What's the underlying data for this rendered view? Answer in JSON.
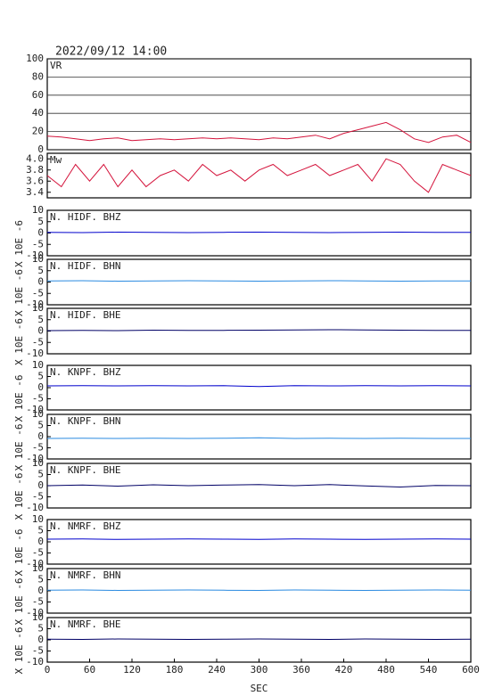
{
  "chart_data": [
    {
      "type": "line",
      "title": "2022/09/12 14:00",
      "label": "VR",
      "color": "#d4143c",
      "grid": true,
      "ylim": [
        0,
        100
      ],
      "yticks": [
        0,
        20,
        40,
        60,
        80,
        100
      ],
      "x": [
        0,
        20,
        40,
        60,
        80,
        100,
        120,
        140,
        160,
        180,
        200,
        220,
        240,
        260,
        280,
        300,
        320,
        340,
        360,
        380,
        400,
        420,
        440,
        460,
        480,
        500,
        520,
        540,
        560,
        580,
        600
      ],
      "values": [
        15,
        14,
        12,
        10,
        12,
        13,
        10,
        11,
        12,
        11,
        12,
        13,
        12,
        13,
        12,
        11,
        13,
        12,
        14,
        16,
        12,
        18,
        22,
        26,
        30,
        22,
        12,
        8,
        14,
        16,
        8
      ]
    },
    {
      "type": "line",
      "label": "Mw",
      "color": "#d4143c",
      "grid": false,
      "ylim": [
        3.3,
        4.1
      ],
      "yticks": [
        3.4,
        3.6,
        3.8,
        {
          "value": 4.0,
          "label": "4.0"
        }
      ],
      "x": [
        0,
        20,
        40,
        60,
        80,
        100,
        120,
        140,
        160,
        180,
        200,
        220,
        240,
        260,
        280,
        300,
        320,
        340,
        360,
        380,
        400,
        420,
        440,
        460,
        480,
        500,
        520,
        540,
        560,
        580,
        600
      ],
      "values": [
        3.7,
        3.5,
        3.9,
        3.6,
        3.9,
        3.5,
        3.8,
        3.5,
        3.7,
        3.8,
        3.6,
        3.9,
        3.7,
        3.8,
        3.6,
        3.8,
        3.9,
        3.7,
        3.8,
        3.9,
        3.7,
        3.8,
        3.9,
        3.6,
        4.0,
        3.9,
        3.6,
        3.4,
        3.9,
        3.8,
        3.7
      ]
    },
    {
      "type": "line",
      "label": "N. HIDF. BHZ",
      "ylabel": "X 10E -6",
      "color": "#0000cc",
      "ylim": [
        -10,
        10
      ],
      "yticks": [
        -10,
        -5,
        0,
        5,
        10
      ],
      "x": [
        0,
        50,
        100,
        150,
        200,
        250,
        300,
        350,
        400,
        450,
        500,
        550,
        600
      ],
      "values": [
        0.3,
        0.2,
        0.4,
        0.3,
        0.2,
        0.3,
        0.4,
        0.3,
        0.2,
        0.3,
        0.4,
        0.3,
        0.3
      ]
    },
    {
      "type": "line",
      "label": "N. HIDF. BHN",
      "ylabel": "X 10E -6",
      "color": "#2a8ae0",
      "ylim": [
        -10,
        10
      ],
      "yticks": [
        -10,
        -5,
        0,
        5,
        10
      ],
      "x": [
        0,
        50,
        100,
        150,
        200,
        250,
        300,
        350,
        400,
        450,
        500,
        550,
        600
      ],
      "values": [
        0.5,
        0.6,
        0.4,
        0.5,
        0.6,
        0.5,
        0.4,
        0.5,
        0.6,
        0.5,
        0.4,
        0.5,
        0.5
      ]
    },
    {
      "type": "line",
      "label": "N. HIDF. BHE",
      "ylabel": "X 10E -6",
      "color": "#000066",
      "ylim": [
        -10,
        10
      ],
      "yticks": [
        -10,
        -5,
        0,
        5,
        10
      ],
      "x": [
        0,
        50,
        100,
        150,
        200,
        250,
        300,
        350,
        400,
        450,
        500,
        550,
        600
      ],
      "values": [
        0.2,
        0.3,
        0.2,
        0.4,
        0.3,
        0.3,
        0.4,
        0.5,
        0.6,
        0.5,
        0.4,
        0.3,
        0.3
      ]
    },
    {
      "type": "line",
      "label": "N. KNPF. BHZ",
      "ylabel": "X 10E -6",
      "color": "#0000cc",
      "ylim": [
        -10,
        10
      ],
      "yticks": [
        -10,
        -5,
        0,
        5,
        10
      ],
      "x": [
        0,
        50,
        100,
        150,
        200,
        250,
        300,
        350,
        400,
        450,
        500,
        550,
        600
      ],
      "values": [
        0.8,
        0.9,
        0.8,
        0.9,
        0.8,
        0.9,
        0.5,
        0.9,
        0.8,
        0.9,
        0.8,
        0.9,
        0.8
      ]
    },
    {
      "type": "line",
      "label": "N. KNPF. BHN",
      "ylabel": "X 10E -6",
      "color": "#2a8ae0",
      "ylim": [
        -10,
        10
      ],
      "yticks": [
        -10,
        -5,
        0,
        5,
        10
      ],
      "x": [
        0,
        50,
        100,
        150,
        200,
        250,
        300,
        350,
        400,
        450,
        500,
        550,
        600
      ],
      "values": [
        -0.8,
        -0.7,
        -0.8,
        -0.7,
        -0.8,
        -0.7,
        -0.5,
        -0.8,
        -0.7,
        -0.8,
        -0.7,
        -0.8,
        -0.8
      ]
    },
    {
      "type": "line",
      "label": "N. KNPF. BHE",
      "ylabel": "X 10E -6",
      "color": "#000066",
      "ylim": [
        -10,
        10
      ],
      "yticks": [
        -10,
        -5,
        0,
        5,
        10
      ],
      "x": [
        0,
        50,
        100,
        150,
        200,
        250,
        300,
        350,
        400,
        450,
        500,
        550,
        600
      ],
      "values": [
        0,
        0.3,
        -0.2,
        0.4,
        0,
        0.3,
        0.5,
        0,
        0.5,
        -0.1,
        -0.6,
        0.1,
        0
      ]
    },
    {
      "type": "line",
      "label": "N. NMRF. BHZ",
      "ylabel": "X 10E -6",
      "color": "#0000cc",
      "ylim": [
        -10,
        10
      ],
      "yticks": [
        -10,
        -5,
        0,
        5,
        10
      ],
      "x": [
        0,
        50,
        100,
        150,
        200,
        250,
        300,
        350,
        400,
        450,
        500,
        550,
        600
      ],
      "values": [
        1.2,
        1.3,
        1.1,
        1.2,
        1.3,
        1.2,
        1.1,
        1.3,
        1.2,
        1.1,
        1.2,
        1.3,
        1.2
      ]
    },
    {
      "type": "line",
      "label": "N. NMRF. BHN",
      "ylabel": "X 10E -6",
      "color": "#2a8ae0",
      "ylim": [
        -10,
        10
      ],
      "yticks": [
        -10,
        -5,
        0,
        5,
        10
      ],
      "x": [
        0,
        50,
        100,
        150,
        200,
        250,
        300,
        350,
        400,
        450,
        500,
        550,
        600
      ],
      "values": [
        0.3,
        0.4,
        0.2,
        0.3,
        0.4,
        0.3,
        0.2,
        0.4,
        0.3,
        0.2,
        0.3,
        0.4,
        0.3
      ]
    },
    {
      "type": "line",
      "label": "N. NMRF. BHE",
      "ylabel": "X 10E -6",
      "color": "#000066",
      "ylim": [
        -10,
        10
      ],
      "yticks": [
        -10,
        -5,
        0,
        5,
        10
      ],
      "x": [
        0,
        50,
        100,
        150,
        200,
        250,
        300,
        350,
        400,
        450,
        500,
        550,
        600
      ],
      "values": [
        0.3,
        0.2,
        0.4,
        0.3,
        0.2,
        0.3,
        0.4,
        0.3,
        0.2,
        0.4,
        0.3,
        0.2,
        0.3
      ],
      "xlim": [
        0,
        600
      ],
      "xticks": [
        0,
        60,
        120,
        180,
        240,
        300,
        360,
        420,
        480,
        540,
        600
      ],
      "xlabel": "SEC"
    }
  ]
}
